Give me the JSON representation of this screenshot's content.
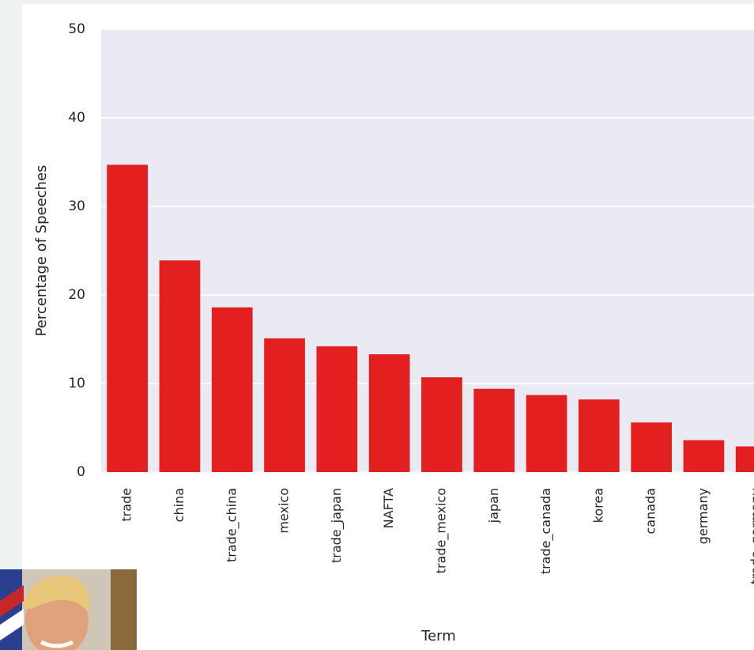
{
  "chart_data": {
    "type": "bar",
    "x_label": "Term",
    "y_label": "Percentage of Speeches",
    "categories": [
      "trade",
      "china",
      "trade_china",
      "mexico",
      "trade_japan",
      "NAFTA",
      "trade_mexico",
      "japan",
      "trade_canada",
      "korea",
      "canada",
      "germany",
      "trade_germany"
    ],
    "values": [
      34.7,
      23.9,
      18.6,
      15.1,
      14.2,
      13.3,
      10.7,
      9.4,
      8.7,
      8.2,
      5.6,
      3.6,
      2.9
    ],
    "color": "#e31f1f",
    "ylim": [
      0,
      50
    ],
    "yticks": [
      0,
      10,
      20,
      30,
      40,
      50
    ],
    "grid": true
  }
}
